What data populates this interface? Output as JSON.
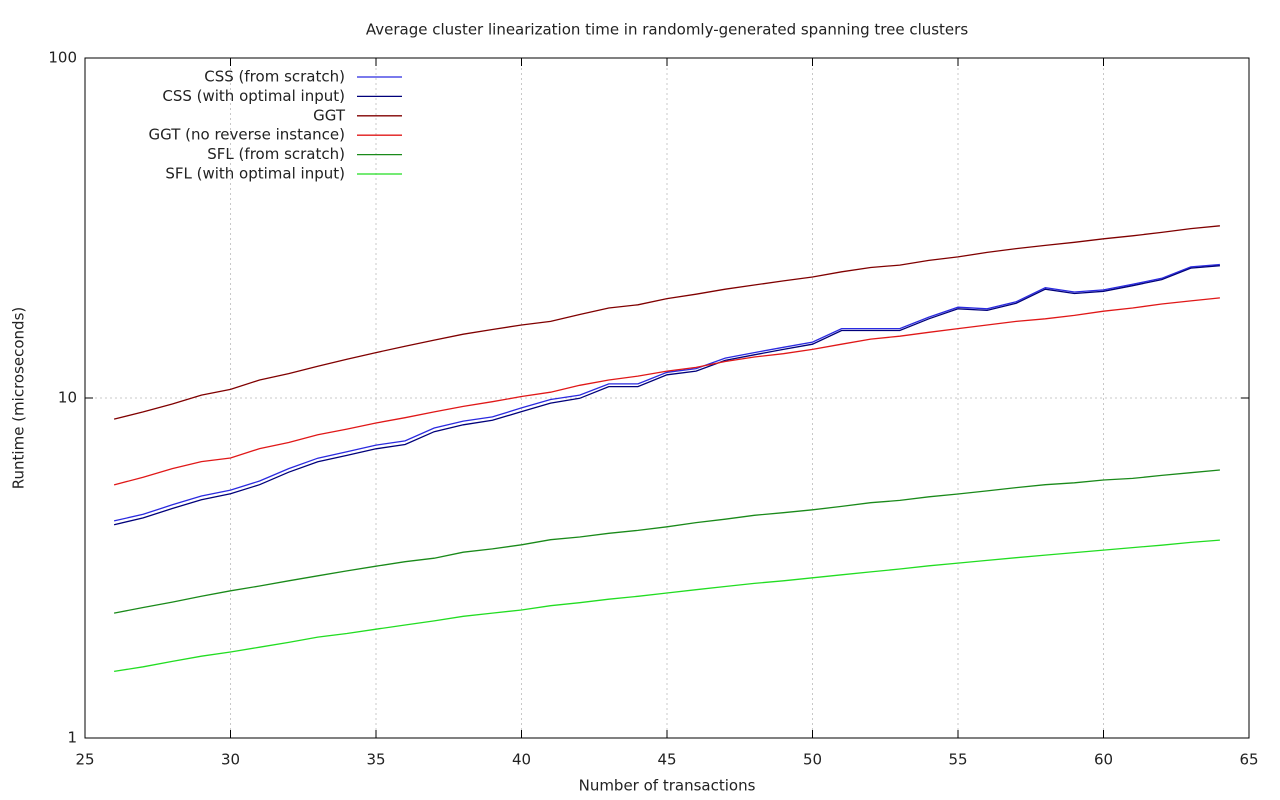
{
  "chart_data": {
    "type": "line",
    "title": "Average cluster linearization time in randomly-generated spanning tree clusters",
    "xlabel": "Number of transactions",
    "ylabel": "Runtime (microseconds)",
    "x": [
      26,
      27,
      28,
      29,
      30,
      31,
      32,
      33,
      34,
      35,
      36,
      37,
      38,
      39,
      40,
      41,
      42,
      43,
      44,
      45,
      46,
      47,
      48,
      49,
      50,
      51,
      52,
      53,
      54,
      55,
      56,
      57,
      58,
      59,
      60,
      61,
      62,
      63,
      64
    ],
    "series": [
      {
        "name": "CSS (from scratch)",
        "color": "#2a2ae0",
        "values": [
          4.35,
          4.55,
          4.85,
          5.15,
          5.36,
          5.7,
          6.2,
          6.65,
          6.95,
          7.27,
          7.48,
          8.16,
          8.55,
          8.8,
          9.35,
          9.9,
          10.2,
          11.0,
          11.0,
          11.9,
          12.2,
          13.1,
          13.6,
          14.1,
          14.6,
          16.0,
          16.0,
          16.0,
          17.3,
          18.5,
          18.3,
          19.2,
          21.1,
          20.5,
          20.8,
          21.6,
          22.5,
          24.3,
          24.7
        ]
      },
      {
        "name": "CSS (with optimal input)",
        "color": "#00007a",
        "values": [
          4.24,
          4.44,
          4.73,
          5.02,
          5.23,
          5.56,
          6.05,
          6.49,
          6.78,
          7.09,
          7.3,
          7.96,
          8.34,
          8.6,
          9.12,
          9.66,
          9.98,
          10.8,
          10.8,
          11.7,
          12.0,
          12.9,
          13.4,
          13.9,
          14.4,
          15.8,
          15.8,
          15.8,
          17.1,
          18.3,
          18.1,
          19.0,
          20.9,
          20.3,
          20.6,
          21.4,
          22.3,
          24.1,
          24.5
        ]
      },
      {
        "name": "GGT",
        "color": "#800000",
        "values": [
          8.67,
          9.1,
          9.6,
          10.2,
          10.6,
          11.3,
          11.8,
          12.4,
          13.0,
          13.6,
          14.2,
          14.8,
          15.4,
          15.9,
          16.4,
          16.8,
          17.6,
          18.4,
          18.8,
          19.6,
          20.2,
          20.9,
          21.5,
          22.1,
          22.7,
          23.5,
          24.2,
          24.6,
          25.4,
          26.0,
          26.8,
          27.5,
          28.1,
          28.7,
          29.4,
          30.0,
          30.7,
          31.5,
          32.1
        ]
      },
      {
        "name": "GGT (no reverse instance)",
        "color": "#e01818",
        "values": [
          5.55,
          5.85,
          6.2,
          6.5,
          6.66,
          7.1,
          7.4,
          7.8,
          8.1,
          8.44,
          8.75,
          9.1,
          9.45,
          9.75,
          10.1,
          10.4,
          10.9,
          11.3,
          11.6,
          12.0,
          12.3,
          12.8,
          13.2,
          13.5,
          13.9,
          14.4,
          14.9,
          15.2,
          15.6,
          16.0,
          16.4,
          16.8,
          17.1,
          17.5,
          18.0,
          18.4,
          18.9,
          19.3,
          19.7
        ]
      },
      {
        "name": "SFL (from scratch)",
        "color": "#1a8a1a",
        "values": [
          2.33,
          2.42,
          2.51,
          2.61,
          2.71,
          2.8,
          2.9,
          3.0,
          3.1,
          3.2,
          3.3,
          3.38,
          3.52,
          3.6,
          3.7,
          3.83,
          3.9,
          4.0,
          4.08,
          4.18,
          4.3,
          4.4,
          4.52,
          4.6,
          4.69,
          4.8,
          4.92,
          5.0,
          5.12,
          5.22,
          5.33,
          5.45,
          5.56,
          5.63,
          5.74,
          5.8,
          5.92,
          6.03,
          6.14
        ]
      },
      {
        "name": "SFL (with optimal input)",
        "color": "#22dd22",
        "values": [
          1.57,
          1.62,
          1.68,
          1.74,
          1.79,
          1.85,
          1.91,
          1.98,
          2.03,
          2.09,
          2.15,
          2.21,
          2.28,
          2.33,
          2.38,
          2.45,
          2.5,
          2.56,
          2.61,
          2.67,
          2.73,
          2.79,
          2.85,
          2.9,
          2.96,
          3.02,
          3.08,
          3.14,
          3.21,
          3.27,
          3.33,
          3.39,
          3.45,
          3.51,
          3.57,
          3.63,
          3.69,
          3.76,
          3.82
        ]
      }
    ],
    "xlim": [
      25,
      65
    ],
    "xticks": [
      25,
      30,
      35,
      40,
      45,
      50,
      55,
      60,
      65
    ],
    "ylim": [
      1,
      100
    ],
    "yticks": [
      1,
      10,
      100
    ],
    "ylog": true,
    "grid": true,
    "legend": "upper-left"
  }
}
